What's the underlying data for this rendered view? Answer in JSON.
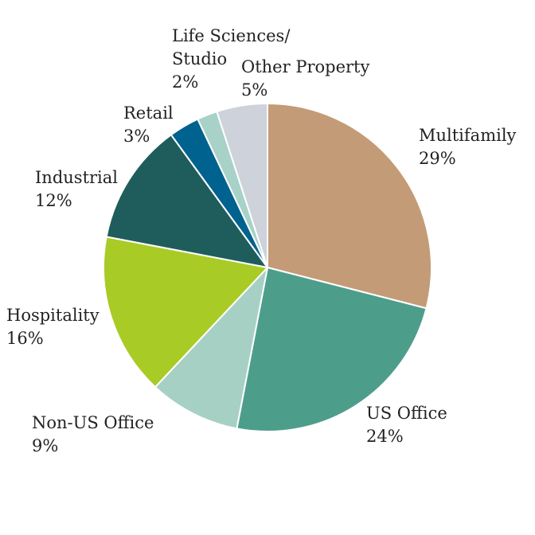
{
  "chart_data": {
    "type": "pie",
    "title": "",
    "start_angle_deg": 0,
    "direction": "clockwise",
    "slices": [
      {
        "label_lines": [
          "Multifamily"
        ],
        "pct_text": "29%",
        "value": 29,
        "color": "#C39B76"
      },
      {
        "label_lines": [
          "US Office"
        ],
        "pct_text": "24%",
        "value": 24,
        "color": "#4C9E8B"
      },
      {
        "label_lines": [
          "Non-US Office"
        ],
        "pct_text": "9%",
        "value": 9,
        "color": "#A7D0C5"
      },
      {
        "label_lines": [
          "Hospitality"
        ],
        "pct_text": "16%",
        "value": 16,
        "color": "#A9CB26"
      },
      {
        "label_lines": [
          "Industrial"
        ],
        "pct_text": "12%",
        "value": 12,
        "color": "#1E5D5B"
      },
      {
        "label_lines": [
          "Retail"
        ],
        "pct_text": "3%",
        "value": 3,
        "color": "#00628E"
      },
      {
        "label_lines": [
          "Life Sciences/",
          "Studio"
        ],
        "pct_text": "2%",
        "value": 2,
        "color": "#A8D2C7"
      },
      {
        "label_lines": [
          "Other Property"
        ],
        "pct_text": "5%",
        "value": 5,
        "color": "#CDD2DB"
      }
    ]
  }
}
